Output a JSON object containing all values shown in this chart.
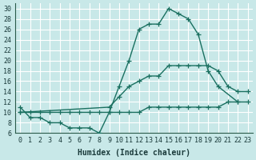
{
  "xlabel": "Humidex (Indice chaleur)",
  "background_color": "#c8e8e8",
  "grid_color": "#ffffff",
  "line_color": "#1a7060",
  "xlim": [
    -0.5,
    23.5
  ],
  "ylim": [
    6,
    31
  ],
  "xticks": [
    0,
    1,
    2,
    3,
    4,
    5,
    6,
    7,
    8,
    9,
    10,
    11,
    12,
    13,
    14,
    15,
    16,
    17,
    18,
    19,
    20,
    21,
    22,
    23
  ],
  "yticks": [
    6,
    8,
    10,
    12,
    14,
    16,
    18,
    20,
    22,
    24,
    26,
    28,
    30
  ],
  "series1": {
    "x": [
      0,
      1,
      2,
      3,
      4,
      5,
      6,
      7,
      8,
      9,
      10,
      11,
      12,
      13,
      14,
      15,
      16,
      17,
      18,
      19,
      20,
      22
    ],
    "y": [
      11,
      9,
      9,
      8,
      8,
      7,
      7,
      7,
      6,
      10,
      15,
      20,
      26,
      27,
      27,
      30,
      29,
      28,
      25,
      18,
      15,
      12
    ]
  },
  "series2": {
    "x": [
      0,
      9,
      10,
      11,
      12,
      13,
      14,
      15,
      16,
      17,
      18,
      19,
      20,
      21,
      22,
      23
    ],
    "y": [
      10,
      11,
      13,
      15,
      16,
      17,
      17,
      19,
      19,
      19,
      19,
      19,
      18,
      15,
      14,
      14
    ]
  },
  "series3": {
    "x": [
      0,
      1,
      2,
      3,
      4,
      5,
      6,
      7,
      8,
      9,
      10,
      11,
      12,
      13,
      14,
      15,
      16,
      17,
      18,
      19,
      20,
      21,
      22,
      23
    ],
    "y": [
      10,
      10,
      10,
      10,
      10,
      10,
      10,
      10,
      10,
      10,
      10,
      10,
      10,
      11,
      11,
      11,
      11,
      11,
      11,
      11,
      11,
      12,
      12,
      12
    ]
  }
}
